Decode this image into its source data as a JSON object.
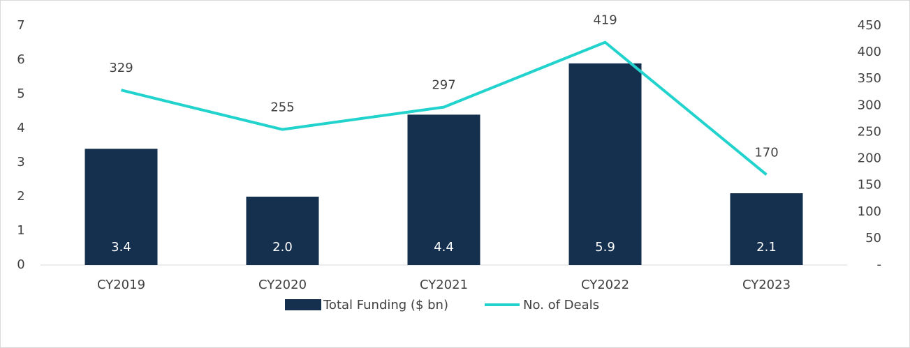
{
  "chart_data": {
    "type": "bar",
    "categories": [
      "CY2019",
      "CY2020",
      "CY2021",
      "CY2022",
      "CY2023"
    ],
    "series": [
      {
        "name": "Total Funding ($ bn)",
        "type": "bar",
        "color": "#152f4e",
        "values": [
          3.4,
          2.0,
          4.4,
          5.9,
          2.1
        ],
        "value_labels": [
          "3.4",
          "2.0",
          "4.4",
          "5.9",
          "2.1"
        ]
      },
      {
        "name": "No. of Deals",
        "type": "line",
        "axis": "y2",
        "color": "#22d3cd",
        "values": [
          329,
          255,
          297,
          419,
          170
        ]
      }
    ],
    "ylim": [
      0,
      7
    ],
    "yticks": [
      0,
      1,
      2,
      3,
      4,
      5,
      6,
      7
    ],
    "y2lim": [
      0,
      450
    ],
    "y2ticks": [
      {
        "value": 0,
        "label": "-"
      },
      50,
      100,
      150,
      200,
      250,
      300,
      350,
      400,
      450
    ],
    "legend": "bottom"
  }
}
